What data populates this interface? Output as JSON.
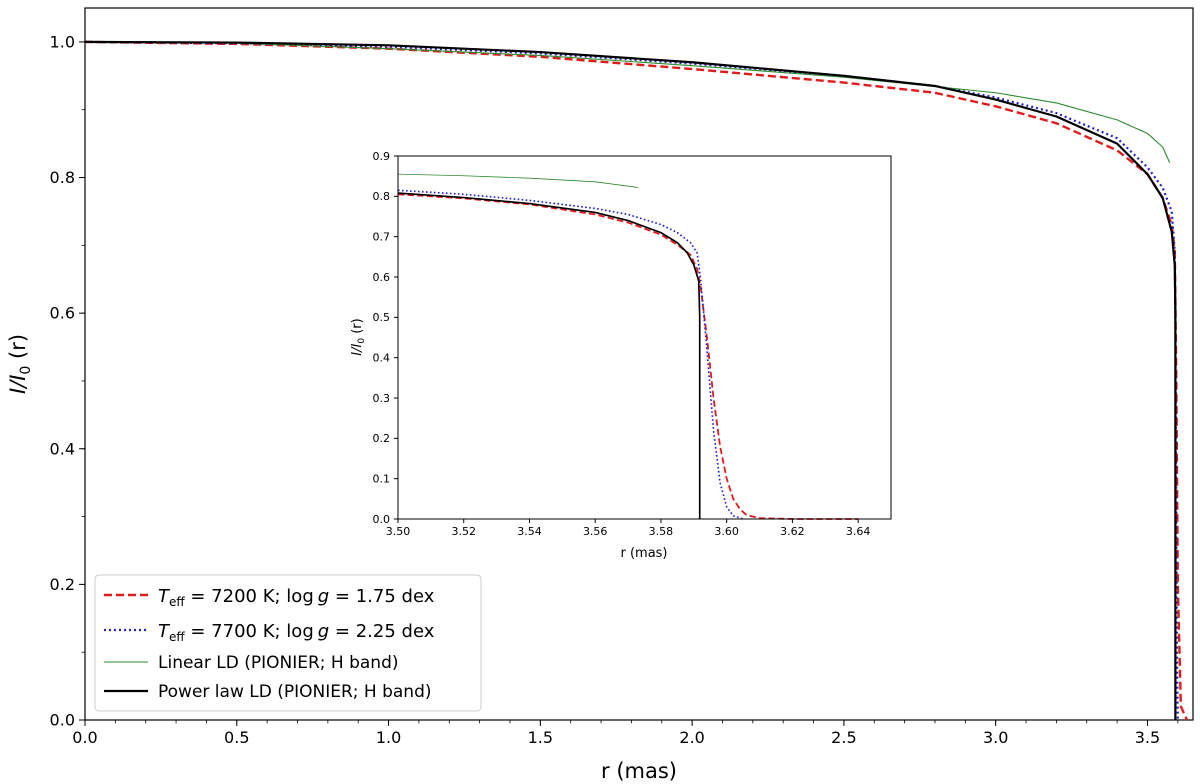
{
  "chart_data": [
    {
      "id": "main",
      "type": "line",
      "xlabel": "r (mas)",
      "ylabel": "I/I0 (r)",
      "xlim": [
        0.0,
        3.65
      ],
      "ylim": [
        0.0,
        1.05
      ],
      "xticks": [
        "0.0",
        "0.5",
        "1.0",
        "1.5",
        "2.0",
        "2.5",
        "3.0",
        "3.5"
      ],
      "xtick_values": [
        0.0,
        0.5,
        1.0,
        1.5,
        2.0,
        2.5,
        3.0,
        3.5
      ],
      "yticks": [
        "0.0",
        "0.2",
        "0.4",
        "0.6",
        "0.8",
        "1.0"
      ],
      "ytick_values": [
        0.0,
        0.2,
        0.4,
        0.6,
        0.8,
        1.0
      ],
      "grid": false,
      "legend_position": "lower-left",
      "series": [
        {
          "key": "teff7200",
          "name": "T_eff = 7200 K; log g = 1.75 dex",
          "color": "#e31a1c",
          "style": "dashed",
          "x": [
            0.0,
            0.5,
            1.0,
            1.5,
            2.0,
            2.5,
            2.8,
            3.0,
            3.2,
            3.4,
            3.5,
            3.55,
            3.58,
            3.59,
            3.595,
            3.6,
            3.61,
            3.63
          ],
          "y": [
            1.0,
            0.997,
            0.99,
            0.978,
            0.96,
            0.94,
            0.925,
            0.905,
            0.88,
            0.84,
            0.805,
            0.77,
            0.73,
            0.69,
            0.5,
            0.2,
            0.02,
            0.0
          ]
        },
        {
          "key": "teff7700",
          "name": "T_eff = 7700 K; log g = 2.25 dex",
          "color": "#1f1fcc",
          "style": "dotted",
          "x": [
            0.0,
            0.5,
            1.0,
            1.5,
            2.0,
            2.5,
            2.8,
            3.0,
            3.2,
            3.4,
            3.5,
            3.55,
            3.58,
            3.59,
            3.593,
            3.597,
            3.6
          ],
          "y": [
            1.0,
            0.998,
            0.993,
            0.983,
            0.968,
            0.95,
            0.935,
            0.918,
            0.895,
            0.858,
            0.815,
            0.785,
            0.75,
            0.69,
            0.5,
            0.1,
            0.0
          ]
        },
        {
          "key": "linear",
          "name": "Linear LD (PIONIER; H band)",
          "color": "#2e8b2e",
          "style": "solid-thin",
          "x": [
            0.0,
            0.5,
            1.0,
            1.5,
            2.0,
            2.5,
            3.0,
            3.2,
            3.4,
            3.5,
            3.55,
            3.573
          ],
          "y": [
            1.0,
            0.998,
            0.99,
            0.98,
            0.965,
            0.948,
            0.925,
            0.91,
            0.885,
            0.865,
            0.845,
            0.822
          ]
        },
        {
          "key": "power",
          "name": "Power law LD (PIONIER; H band)",
          "color": "#000000",
          "style": "solid",
          "x": [
            0.0,
            0.5,
            1.0,
            1.5,
            2.0,
            2.5,
            2.8,
            3.0,
            3.2,
            3.4,
            3.5,
            3.55,
            3.58,
            3.59,
            3.592,
            3.592
          ],
          "y": [
            1.0,
            0.999,
            0.995,
            0.985,
            0.97,
            0.95,
            0.935,
            0.915,
            0.89,
            0.85,
            0.805,
            0.77,
            0.72,
            0.67,
            0.6,
            0.0
          ]
        }
      ]
    },
    {
      "id": "inset",
      "type": "line",
      "xlabel": "r (mas)",
      "ylabel": "I/I0 (r)",
      "xlim": [
        3.5,
        3.65
      ],
      "ylim": [
        0.0,
        0.9
      ],
      "xticks": [
        "3.50",
        "3.52",
        "3.54",
        "3.56",
        "3.58",
        "3.60",
        "3.62",
        "3.64"
      ],
      "xtick_values": [
        3.5,
        3.52,
        3.54,
        3.56,
        3.58,
        3.6,
        3.62,
        3.64
      ],
      "yticks": [
        "0.0",
        "0.1",
        "0.2",
        "0.3",
        "0.4",
        "0.5",
        "0.6",
        "0.7",
        "0.8",
        "0.9"
      ],
      "ytick_values": [
        0.0,
        0.1,
        0.2,
        0.3,
        0.4,
        0.5,
        0.6,
        0.7,
        0.8,
        0.9
      ],
      "grid": false,
      "series": [
        {
          "key": "teff7200",
          "x": [
            3.5,
            3.52,
            3.54,
            3.56,
            3.57,
            3.58,
            3.585,
            3.589,
            3.591,
            3.592,
            3.594,
            3.596,
            3.598,
            3.6,
            3.602,
            3.604,
            3.606,
            3.61,
            3.62,
            3.64
          ],
          "y": [
            0.805,
            0.795,
            0.78,
            0.755,
            0.735,
            0.705,
            0.68,
            0.655,
            0.62,
            0.58,
            0.45,
            0.3,
            0.18,
            0.1,
            0.05,
            0.025,
            0.01,
            0.002,
            0.0,
            0.0
          ]
        },
        {
          "key": "teff7700",
          "x": [
            3.5,
            3.52,
            3.54,
            3.56,
            3.57,
            3.58,
            3.585,
            3.589,
            3.591,
            3.592,
            3.594,
            3.596,
            3.598,
            3.6,
            3.602,
            3.605
          ],
          "y": [
            0.815,
            0.805,
            0.79,
            0.77,
            0.755,
            0.73,
            0.71,
            0.685,
            0.66,
            0.6,
            0.42,
            0.22,
            0.09,
            0.03,
            0.008,
            0.0
          ]
        },
        {
          "key": "linear",
          "x": [
            3.5,
            3.52,
            3.54,
            3.56,
            3.573
          ],
          "y": [
            0.855,
            0.851,
            0.845,
            0.836,
            0.822
          ]
        },
        {
          "key": "power",
          "x": [
            3.5,
            3.52,
            3.54,
            3.56,
            3.57,
            3.58,
            3.585,
            3.588,
            3.59,
            3.5915,
            3.5918,
            3.5918
          ],
          "y": [
            0.808,
            0.797,
            0.782,
            0.76,
            0.74,
            0.71,
            0.685,
            0.66,
            0.63,
            0.59,
            0.5,
            0.0
          ]
        }
      ]
    }
  ],
  "labels": {
    "main_ylabel_prefix": "I/I",
    "main_ylabel_sub": "0",
    "main_ylabel_suffix": " (r)",
    "main_xlabel": "r (mas)",
    "inset_xlabel": "r (mas)",
    "legend": [
      {
        "key": "teff7200",
        "prefix": "T",
        "sub": "eff",
        "mid": " = 7200 K; log",
        "italic_g": "g",
        "suffix": " = 1.75 dex"
      },
      {
        "key": "teff7700",
        "prefix": "T",
        "sub": "eff",
        "mid": " = 7700 K; log",
        "italic_g": "g",
        "suffix": " = 2.25 dex"
      },
      {
        "key": "linear",
        "text": "Linear LD (PIONIER; H band)"
      },
      {
        "key": "power",
        "text": "Power law LD (PIONIER; H band)"
      }
    ]
  }
}
